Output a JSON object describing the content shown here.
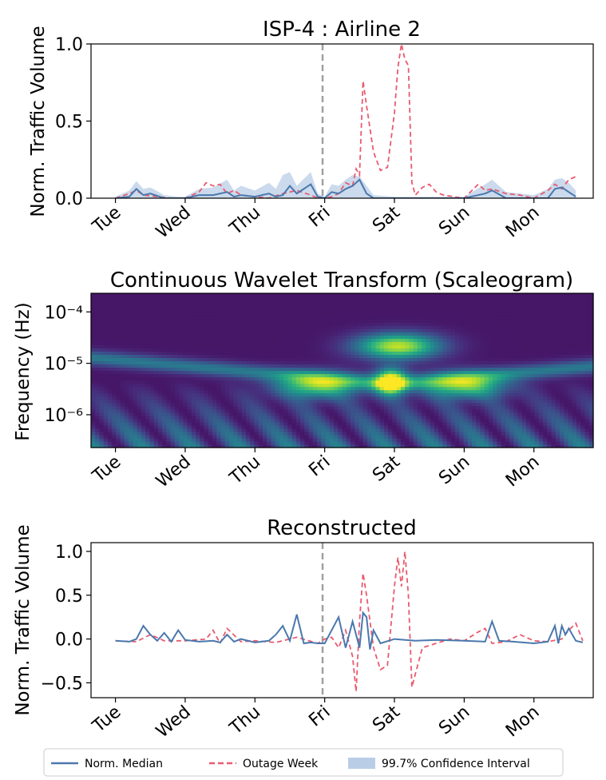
{
  "figure_colors": {
    "median": "#4a78ad",
    "outage": "#ea5a6f",
    "band": "#b9cde6",
    "vline": "#a0a0a0"
  },
  "legend": {
    "median_label": "Norm. Median",
    "outage_label": "Outage Week",
    "ci_label": "99.7% Confidence Interval"
  },
  "chart_data": [
    {
      "type": "line",
      "title": "ISP-4 : Airline 2",
      "xlabel": "",
      "ylabel": "Norm. Traffic Volume",
      "x_ticks": [
        "Tue",
        "Wed",
        "Thu",
        "Fri",
        "Sat",
        "Sun",
        "Mon"
      ],
      "x_range_days": [
        -0.35,
        6.85
      ],
      "ylim": [
        0.0,
        1.0
      ],
      "y_ticks": [
        0.0,
        0.5,
        1.0
      ],
      "y_tick_labels": [
        "0.0",
        "0.5",
        "1.0"
      ],
      "outage_marker_day": 2.97,
      "series": [
        {
          "name": "Norm. Median",
          "style": "solid",
          "x": [
            0.0,
            0.2,
            0.3,
            0.4,
            0.5,
            0.7,
            0.9,
            1.0,
            1.2,
            1.4,
            1.6,
            1.7,
            1.8,
            2.0,
            2.2,
            2.3,
            2.4,
            2.5,
            2.6,
            2.8,
            2.9,
            3.0,
            3.1,
            3.2,
            3.3,
            3.4,
            3.5,
            3.6,
            3.7,
            4.0,
            4.3,
            4.6,
            5.0,
            5.3,
            5.4,
            5.6,
            6.0,
            6.2,
            6.3,
            6.4,
            6.5,
            6.6
          ],
          "y": [
            0.0,
            0.01,
            0.06,
            0.02,
            0.03,
            0.0,
            0.0,
            0.0,
            0.02,
            0.02,
            0.04,
            0.01,
            0.02,
            0.01,
            0.03,
            0.01,
            0.02,
            0.08,
            0.03,
            0.09,
            0.01,
            0.0,
            0.04,
            0.03,
            0.06,
            0.08,
            0.12,
            0.03,
            0.0,
            0.0,
            0.0,
            0.0,
            0.0,
            0.03,
            0.05,
            0.0,
            0.0,
            0.0,
            0.06,
            0.07,
            0.04,
            0.01
          ]
        },
        {
          "name": "Outage Week",
          "style": "dashed",
          "x": [
            0.0,
            0.2,
            0.3,
            0.4,
            0.6,
            0.8,
            1.0,
            1.2,
            1.3,
            1.4,
            1.5,
            1.6,
            1.7,
            1.8,
            2.0,
            2.2,
            2.4,
            2.6,
            2.8,
            2.9,
            3.0,
            3.1,
            3.2,
            3.3,
            3.4,
            3.45,
            3.5,
            3.55,
            3.6,
            3.7,
            3.8,
            3.9,
            4.0,
            4.05,
            4.1,
            4.15,
            4.2,
            4.25,
            4.3,
            4.4,
            4.5,
            4.6,
            4.7,
            5.0,
            5.2,
            5.3,
            5.4,
            5.6,
            5.8,
            6.0,
            6.2,
            6.3,
            6.4,
            6.5,
            6.6
          ],
          "y": [
            0.0,
            0.03,
            0.05,
            0.02,
            0.01,
            0.0,
            0.0,
            0.04,
            0.1,
            0.08,
            0.09,
            0.03,
            0.05,
            0.02,
            0.01,
            0.0,
            0.03,
            0.05,
            0.02,
            0.0,
            0.0,
            0.01,
            0.03,
            0.1,
            0.08,
            0.19,
            0.15,
            0.76,
            0.6,
            0.3,
            0.18,
            0.2,
            0.55,
            0.85,
            1.0,
            0.9,
            0.86,
            0.1,
            0.02,
            0.07,
            0.09,
            0.04,
            0.02,
            0.0,
            0.09,
            0.05,
            0.06,
            0.03,
            0.02,
            0.0,
            0.05,
            0.09,
            0.06,
            0.12,
            0.14
          ]
        },
        {
          "name": "99.7% Confidence Interval",
          "style": "band",
          "x": [
            0.0,
            0.2,
            0.3,
            0.4,
            0.5,
            0.7,
            0.9,
            1.0,
            1.2,
            1.4,
            1.6,
            1.7,
            1.8,
            2.0,
            2.2,
            2.3,
            2.4,
            2.5,
            2.6,
            2.8,
            2.9,
            3.0,
            3.1,
            3.2,
            3.3,
            3.4,
            3.5,
            3.6,
            3.7,
            4.0,
            4.3,
            4.6,
            5.0,
            5.3,
            5.4,
            5.6,
            6.0,
            6.2,
            6.3,
            6.4,
            6.5,
            6.6
          ],
          "upper": [
            0.01,
            0.05,
            0.11,
            0.06,
            0.07,
            0.02,
            0.01,
            0.01,
            0.06,
            0.07,
            0.12,
            0.05,
            0.08,
            0.05,
            0.1,
            0.06,
            0.15,
            0.17,
            0.08,
            0.17,
            0.03,
            0.01,
            0.09,
            0.08,
            0.12,
            0.15,
            0.14,
            0.08,
            0.02,
            0.01,
            0.01,
            0.01,
            0.01,
            0.09,
            0.12,
            0.04,
            0.02,
            0.06,
            0.12,
            0.13,
            0.1,
            0.05
          ]
        }
      ]
    },
    {
      "type": "heatmap",
      "title": "Continuous Wavelet Transform (Scaleogram)",
      "xlabel": "",
      "ylabel": "Frequency (Hz)",
      "x_ticks": [
        "Tue",
        "Wed",
        "Thu",
        "Fri",
        "Sat",
        "Sun",
        "Mon"
      ],
      "x_range_days": [
        -0.35,
        6.85
      ],
      "y_scale": "log",
      "y_tick_labels": [
        "10⁻⁴",
        "10⁻⁵",
        "10⁻⁶"
      ],
      "y_tick_values": [
        0.0001,
        1e-05,
        1e-06
      ],
      "ylim": [
        2.3e-07,
        0.00023
      ],
      "colormap": "viridis",
      "hotspots": [
        {
          "day": 3.95,
          "freq": 4.5e-06,
          "intensity": 1.0
        },
        {
          "day": 4.05,
          "freq": 2.2e-05,
          "intensity": 0.85
        },
        {
          "day": 2.9,
          "freq": 3.8e-06,
          "intensity": 0.7
        },
        {
          "day": 5.0,
          "freq": 3.8e-06,
          "intensity": 0.7
        }
      ]
    },
    {
      "type": "line",
      "title": "Reconstructed",
      "xlabel": "",
      "ylabel": "Norm. Traffic Volume",
      "x_ticks": [
        "Tue",
        "Wed",
        "Thu",
        "Fri",
        "Sat",
        "Sun",
        "Mon"
      ],
      "x_range_days": [
        -0.35,
        6.85
      ],
      "ylim": [
        -0.67,
        1.1
      ],
      "y_ticks": [
        -0.5,
        0.0,
        0.5,
        1.0
      ],
      "y_tick_labels": [
        "−0.5",
        "0.0",
        "0.5",
        "1.0"
      ],
      "outage_marker_day": 2.97,
      "series": [
        {
          "name": "Norm. Median",
          "style": "solid",
          "x": [
            0.0,
            0.2,
            0.3,
            0.4,
            0.5,
            0.6,
            0.7,
            0.8,
            0.9,
            1.0,
            1.2,
            1.4,
            1.5,
            1.6,
            1.7,
            1.8,
            2.0,
            2.2,
            2.3,
            2.4,
            2.5,
            2.6,
            2.7,
            2.8,
            2.9,
            3.0,
            3.2,
            3.3,
            3.4,
            3.5,
            3.55,
            3.6,
            3.65,
            3.7,
            3.8,
            4.0,
            4.3,
            4.6,
            5.0,
            5.3,
            5.4,
            5.5,
            5.7,
            6.0,
            6.2,
            6.3,
            6.35,
            6.4,
            6.45,
            6.5,
            6.6,
            6.7
          ],
          "y": [
            -0.02,
            -0.03,
            0.0,
            0.15,
            0.05,
            -0.02,
            0.07,
            -0.03,
            0.1,
            -0.01,
            -0.03,
            -0.02,
            -0.04,
            0.05,
            -0.03,
            0.0,
            -0.04,
            -0.02,
            0.05,
            0.15,
            -0.02,
            0.28,
            -0.05,
            -0.04,
            -0.05,
            -0.05,
            0.25,
            -0.1,
            0.2,
            -0.1,
            0.3,
            0.25,
            -0.12,
            0.1,
            -0.05,
            0.0,
            -0.02,
            -0.01,
            -0.02,
            -0.03,
            0.2,
            -0.02,
            -0.03,
            -0.05,
            -0.03,
            0.15,
            -0.05,
            0.15,
            0.05,
            0.12,
            -0.02,
            -0.04
          ]
        },
        {
          "name": "Outage Week",
          "style": "dashed",
          "x": [
            0.0,
            0.3,
            0.5,
            0.7,
            1.0,
            1.3,
            1.4,
            1.5,
            1.6,
            1.8,
            2.0,
            2.3,
            2.6,
            2.9,
            3.0,
            3.1,
            3.2,
            3.3,
            3.4,
            3.45,
            3.5,
            3.55,
            3.6,
            3.7,
            3.8,
            3.9,
            4.0,
            4.05,
            4.1,
            4.15,
            4.2,
            4.25,
            4.3,
            4.4,
            4.6,
            4.8,
            5.0,
            5.2,
            5.3,
            5.4,
            5.6,
            5.8,
            6.0,
            6.2,
            6.4,
            6.5,
            6.6,
            6.7
          ],
          "y": [
            -0.02,
            -0.03,
            0.05,
            -0.02,
            -0.02,
            0.0,
            0.1,
            -0.05,
            0.12,
            -0.03,
            -0.02,
            -0.04,
            0.02,
            -0.05,
            0.0,
            0.02,
            -0.1,
            0.1,
            -0.2,
            -0.6,
            0.2,
            0.75,
            0.5,
            -0.1,
            -0.35,
            -0.3,
            0.6,
            0.93,
            0.6,
            1.0,
            0.5,
            -0.55,
            -0.4,
            -0.1,
            -0.05,
            0.0,
            -0.02,
            0.08,
            0.12,
            -0.05,
            -0.03,
            0.05,
            -0.02,
            -0.03,
            0.0,
            0.1,
            0.18,
            -0.02
          ]
        }
      ]
    }
  ]
}
